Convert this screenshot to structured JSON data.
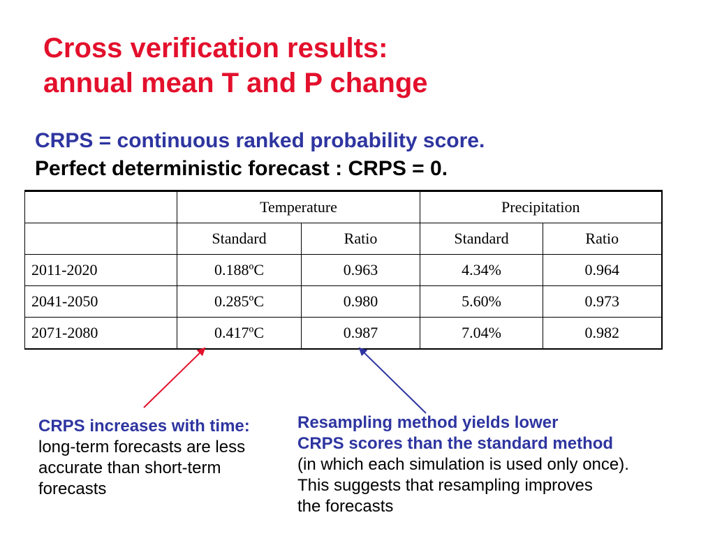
{
  "title": {
    "line1": "Cross verification results:",
    "line2": "annual mean T and P change"
  },
  "definitions": {
    "line1": "CRPS = continuous ranked probability score.",
    "line2": "Perfect deterministic forecast : CRPS = 0."
  },
  "table": {
    "group_headers": [
      "Temperature",
      "Precipitation"
    ],
    "sub_headers": [
      "Standard",
      "Ratio",
      "Standard",
      "Ratio"
    ],
    "rows": [
      {
        "label": "2011-2020",
        "values": [
          "0.188ºC",
          "0.963",
          "4.34%",
          "0.964"
        ]
      },
      {
        "label": "2041-2050",
        "values": [
          "0.285ºC",
          "0.980",
          "5.60%",
          "0.973"
        ]
      },
      {
        "label": "2071-2080",
        "values": [
          "0.417ºC",
          "0.987",
          "7.04%",
          "0.982"
        ]
      }
    ]
  },
  "notes": {
    "left": {
      "emphasis": "CRPS increases with time:",
      "text": " long-term forecasts are less accurate than short-term forecasts"
    },
    "right": {
      "emphasis_line1": "Resampling method yields lower",
      "emphasis_line2": "CRPS scores than the standard method",
      "line3": "(in which each simulation is used only once).",
      "line4": "This suggests that resampling improves",
      "line5": "the forecasts"
    }
  },
  "colors": {
    "title": "#e3102c",
    "accent_blue": "#2e35a0",
    "arrow_red": "#e3102c",
    "arrow_blue": "#2e35a0"
  }
}
